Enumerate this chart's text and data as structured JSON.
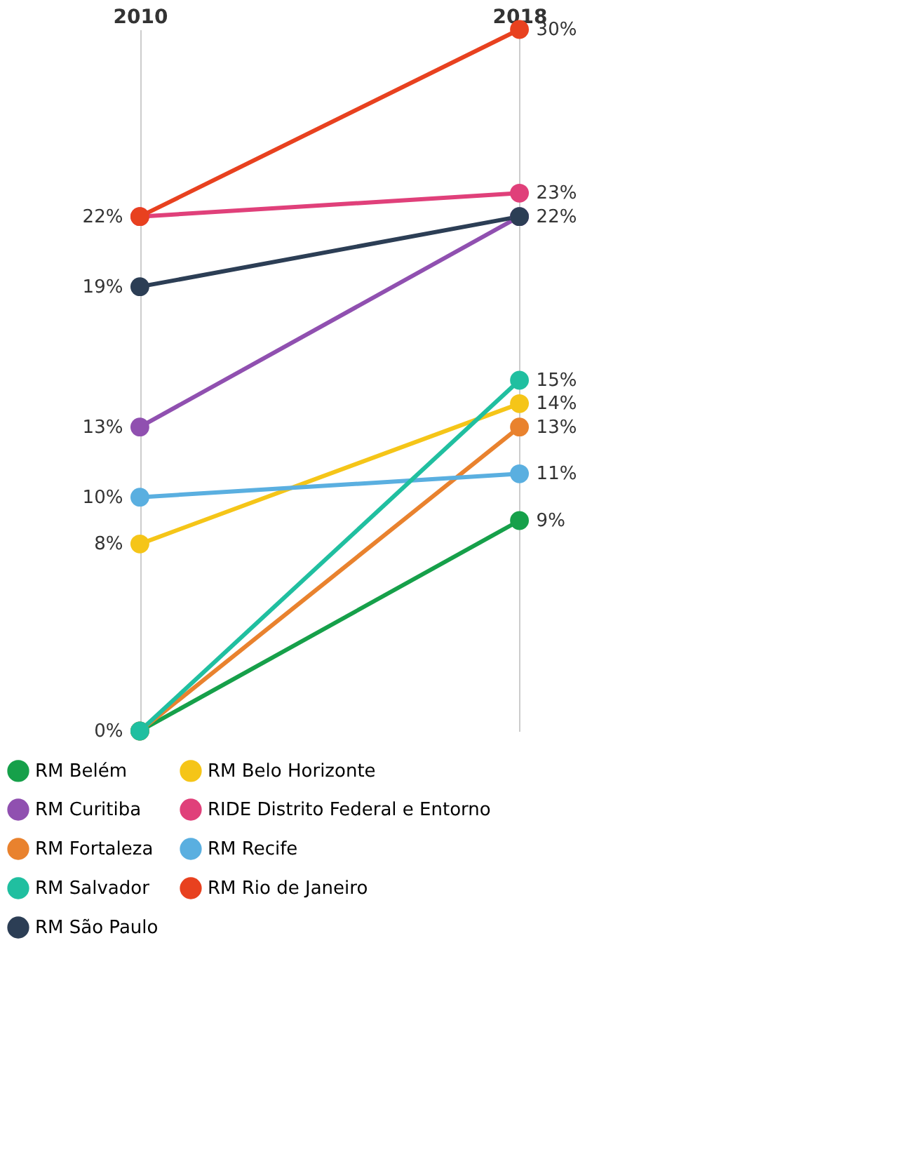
{
  "chart_data": {
    "type": "line",
    "categories": [
      "2010",
      "2018"
    ],
    "ylim": [
      0,
      30
    ],
    "grid": "x",
    "legend": "bottom",
    "marker": "circle",
    "line_style": "solid",
    "tick_labels": "x",
    "series": [
      {
        "name": "RM Belém",
        "color": "#16a04a",
        "values": [
          0,
          9
        ],
        "value_labels": [
          null,
          "9%"
        ]
      },
      {
        "name": "RM Belo Horizonte",
        "color": "#f5c518",
        "values": [
          8,
          14
        ],
        "value_labels": [
          "8%",
          "14%"
        ]
      },
      {
        "name": "RM Curitiba",
        "color": "#9050b0",
        "values": [
          13,
          22
        ],
        "value_labels": [
          "13%",
          null
        ]
      },
      {
        "name": "RIDE Distrito Federal e Entorno",
        "color": "#e0407a",
        "values": [
          22,
          23
        ],
        "value_labels": [
          null,
          "23%"
        ]
      },
      {
        "name": "RM Fortaleza",
        "color": "#e9822e",
        "values": [
          0,
          13
        ],
        "value_labels": [
          null,
          "13%"
        ]
      },
      {
        "name": "RM Recife",
        "color": "#5aafe0",
        "values": [
          10,
          11
        ],
        "value_labels": [
          "10%",
          "11%"
        ]
      },
      {
        "name": "RM Salvador",
        "color": "#20bfa0",
        "values": [
          0,
          15
        ],
        "value_labels": [
          "0%",
          "15%"
        ]
      },
      {
        "name": "RM Rio de Janeiro",
        "color": "#e8411f",
        "values": [
          22,
          30
        ],
        "value_labels": [
          "22%",
          "30%"
        ]
      },
      {
        "name": "RM São Paulo",
        "color": "#2c3e55",
        "values": [
          19,
          22
        ],
        "value_labels": [
          "19%",
          "22%"
        ]
      }
    ]
  }
}
